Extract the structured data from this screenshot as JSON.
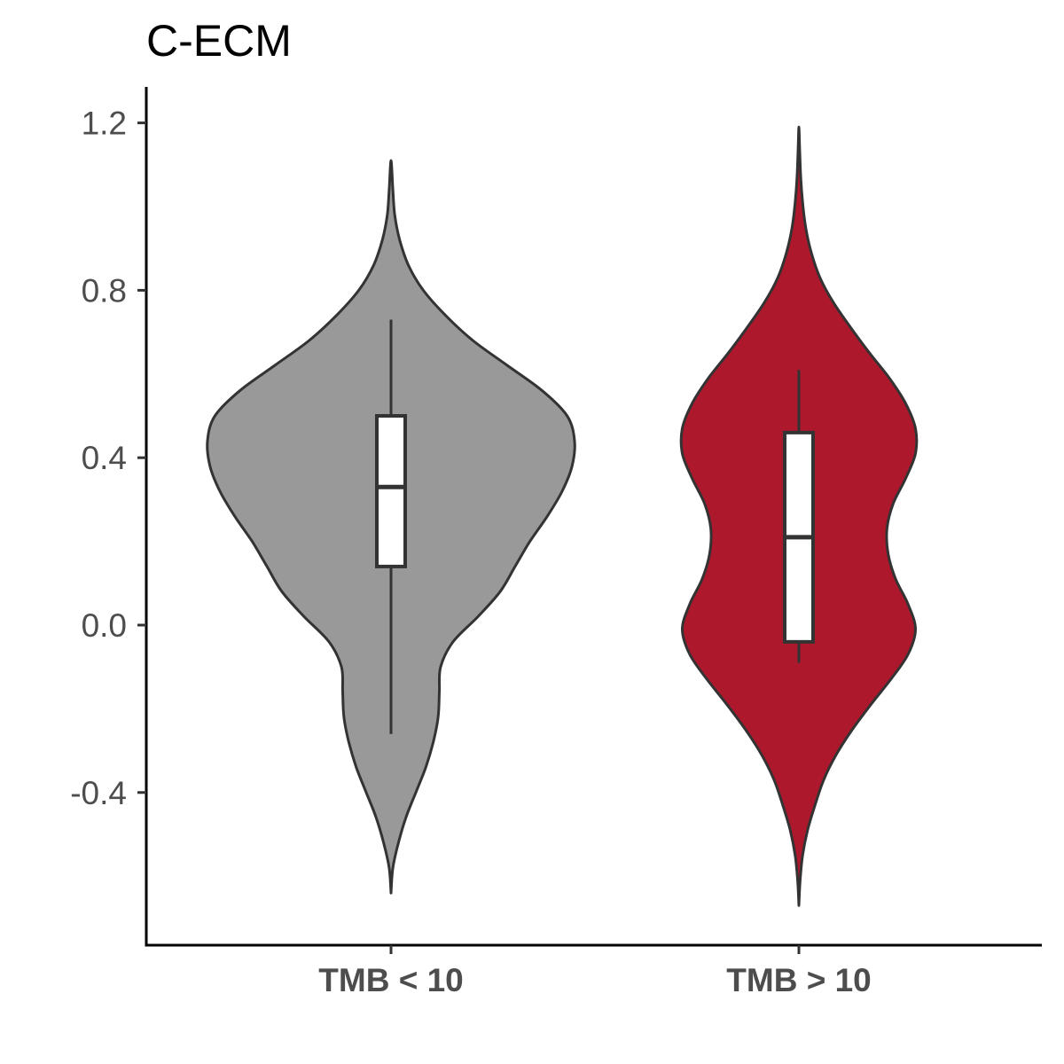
{
  "chart_data": {
    "type": "violin",
    "title": "C-ECM",
    "xlabel": "",
    "ylabel": "",
    "ylim": [
      -0.77,
      1.29
    ],
    "yticks": [
      -0.4,
      0.0,
      0.4,
      0.8,
      1.2
    ],
    "ytick_labels": [
      "-0.4",
      "0.0",
      "0.4",
      "0.8",
      "1.2"
    ],
    "grid": false,
    "legend": "none",
    "categories": [
      "TMB < 10",
      "TMB > 10"
    ],
    "series": [
      {
        "category": "TMB < 10",
        "color": "#999999",
        "box": {
          "whisker_low": -0.26,
          "q1": 0.14,
          "median": 0.33,
          "q3": 0.5,
          "whisker_high": 0.73
        },
        "violin": {
          "min": -0.64,
          "max": 1.11,
          "density": [
            [
              -0.64,
              0.0
            ],
            [
              -0.58,
              0.015
            ],
            [
              -0.52,
              0.06
            ],
            [
              -0.46,
              0.12
            ],
            [
              -0.4,
              0.2
            ],
            [
              -0.34,
              0.28
            ],
            [
              -0.28,
              0.34
            ],
            [
              -0.22,
              0.38
            ],
            [
              -0.16,
              0.39
            ],
            [
              -0.1,
              0.4
            ],
            [
              -0.04,
              0.5
            ],
            [
              0.02,
              0.7
            ],
            [
              0.08,
              0.88
            ],
            [
              0.14,
              1.0
            ],
            [
              0.2,
              1.12
            ],
            [
              0.26,
              1.26
            ],
            [
              0.32,
              1.38
            ],
            [
              0.38,
              1.46
            ],
            [
              0.44,
              1.48
            ],
            [
              0.5,
              1.42
            ],
            [
              0.56,
              1.22
            ],
            [
              0.62,
              0.94
            ],
            [
              0.68,
              0.66
            ],
            [
              0.74,
              0.44
            ],
            [
              0.8,
              0.26
            ],
            [
              0.86,
              0.14
            ],
            [
              0.92,
              0.07
            ],
            [
              0.98,
              0.03
            ],
            [
              1.04,
              0.015
            ],
            [
              1.11,
              0.0
            ]
          ]
        }
      },
      {
        "category": "TMB > 10",
        "color": "#ad182d",
        "box": {
          "whisker_low": -0.09,
          "q1": -0.04,
          "median": 0.21,
          "q3": 0.46,
          "whisker_high": 0.61
        },
        "violin": {
          "min": -0.67,
          "max": 1.19,
          "density": [
            [
              -0.67,
              0.0
            ],
            [
              -0.61,
              0.01
            ],
            [
              -0.55,
              0.03
            ],
            [
              -0.49,
              0.07
            ],
            [
              -0.43,
              0.13
            ],
            [
              -0.37,
              0.2
            ],
            [
              -0.31,
              0.3
            ],
            [
              -0.25,
              0.43
            ],
            [
              -0.19,
              0.58
            ],
            [
              -0.13,
              0.74
            ],
            [
              -0.07,
              0.88
            ],
            [
              -0.01,
              0.94
            ],
            [
              0.05,
              0.88
            ],
            [
              0.11,
              0.78
            ],
            [
              0.17,
              0.72
            ],
            [
              0.23,
              0.71
            ],
            [
              0.29,
              0.76
            ],
            [
              0.35,
              0.86
            ],
            [
              0.41,
              0.94
            ],
            [
              0.47,
              0.94
            ],
            [
              0.53,
              0.86
            ],
            [
              0.59,
              0.73
            ],
            [
              0.65,
              0.57
            ],
            [
              0.71,
              0.42
            ],
            [
              0.77,
              0.28
            ],
            [
              0.83,
              0.17
            ],
            [
              0.89,
              0.1
            ],
            [
              0.95,
              0.055
            ],
            [
              1.01,
              0.03
            ],
            [
              1.07,
              0.015
            ],
            [
              1.13,
              0.007
            ],
            [
              1.19,
              0.0
            ]
          ]
        }
      }
    ]
  }
}
